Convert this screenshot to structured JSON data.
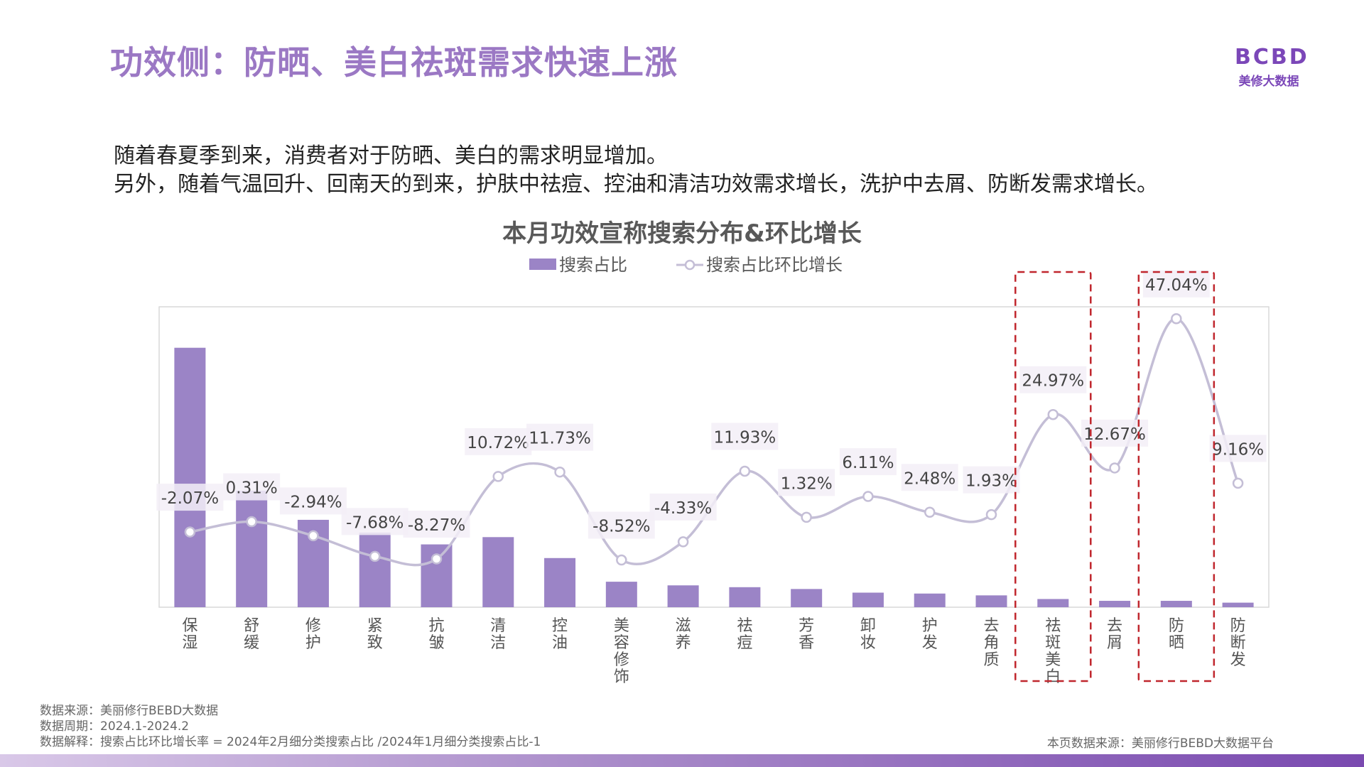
{
  "page": {
    "title": "功效侧：防晒、美白祛斑需求快速上涨",
    "logo": {
      "mark": "BCBD",
      "sub": "美修大数据"
    },
    "intro_lines": [
      "随着春夏季到来，消费者对于防晒、美白的需求明显增加。",
      "另外，随着气温回升、回南天的到来，护肤中祛痘、控油和清洁功效需求增长，洗护中去屑、防断发需求增长。"
    ],
    "footnotes": [
      "数据来源：美丽修行BEBD大数据",
      "数据周期：2024.1-2024.2",
      "数据解释：搜索占比环比增长率 = 2024年2月细分类搜索占比 /2024年1月细分类搜索占比-1"
    ],
    "source_right": "本页数据来源：美丽修行BEBD大数据平台"
  },
  "chart_data": {
    "type": "bar+line",
    "title": "本月功效宣称搜索分布&环比增长",
    "legend": [
      "搜索占比",
      "搜索占比环比增长"
    ],
    "categories": [
      "保湿",
      "舒缓",
      "修护",
      "紧致",
      "抗皱",
      "清洁",
      "控油",
      "美容修饰",
      "滋养",
      "祛痘",
      "芳香",
      "卸妆",
      "护发",
      "去角质",
      "祛斑美白",
      "去屑",
      "防晒",
      "防断发"
    ],
    "series": [
      {
        "name": "搜索占比",
        "type": "bar",
        "values": [
          28.5,
          12.8,
          9.6,
          8.2,
          6.9,
          7.7,
          5.4,
          2.8,
          2.4,
          2.2,
          2.0,
          1.6,
          1.5,
          1.3,
          0.9,
          0.7,
          0.7,
          0.5
        ]
      },
      {
        "name": "搜索占比环比增长",
        "type": "line",
        "values": [
          -2.07,
          0.31,
          -2.94,
          -7.68,
          -8.27,
          10.72,
          11.73,
          -8.52,
          -4.33,
          11.93,
          1.32,
          6.11,
          2.48,
          1.93,
          24.97,
          12.67,
          47.04,
          9.16
        ],
        "labels": [
          "-2.07%",
          "0.31%",
          "-2.94%",
          "-7.68%",
          "-8.27%",
          "10.72%",
          "11.73%",
          "-8.52%",
          "-4.33%",
          "11.93%",
          "1.32%",
          "6.11%",
          "2.48%",
          "1.93%",
          "24.97%",
          "12.67%",
          "47.04%",
          "9.16%"
        ]
      }
    ],
    "highlighted_categories": [
      "祛斑美白",
      "防晒"
    ],
    "colors": {
      "bar": "#9B84C6",
      "line": "#C4BED6",
      "highlight_box": "#C0262D",
      "title": "#595959",
      "page_title": "#9B78C4"
    }
  }
}
